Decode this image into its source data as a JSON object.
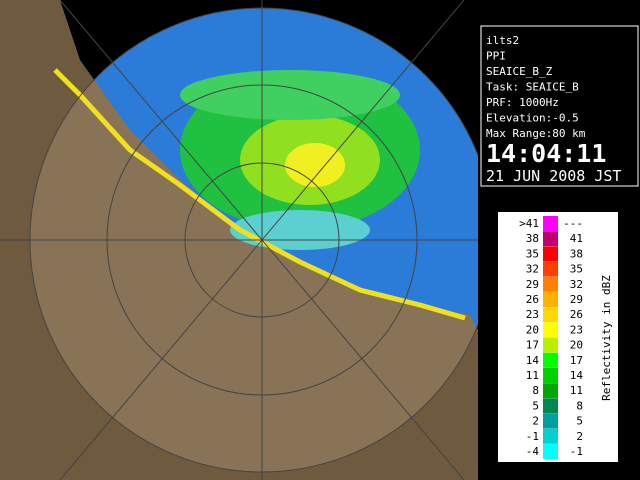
{
  "info": {
    "lines": [
      "ilts2",
      "PPI",
      "SEAICE_B_Z",
      "Task: SEAICE_B",
      "PRF: 1000Hz",
      "Elevation:-0.5",
      "Max Range:80 km"
    ],
    "time": "14:04:11",
    "date": "21 JUN 2008 JST"
  },
  "legend": {
    "title": "Reflectivity in dBZ",
    "rows": [
      {
        "low": ">41",
        "high": "---",
        "color": "#ff00ff"
      },
      {
        "low": "38",
        "high": "41",
        "color": "#c00070"
      },
      {
        "low": "35",
        "high": "38",
        "color": "#ff0000"
      },
      {
        "low": "32",
        "high": "35",
        "color": "#ff4000"
      },
      {
        "low": "29",
        "high": "32",
        "color": "#ff8000"
      },
      {
        "low": "26",
        "high": "29",
        "color": "#ffb000"
      },
      {
        "low": "23",
        "high": "26",
        "color": "#ffd800"
      },
      {
        "low": "20",
        "high": "23",
        "color": "#ffff00"
      },
      {
        "low": "17",
        "high": "20",
        "color": "#b8f000"
      },
      {
        "low": "14",
        "high": "17",
        "color": "#00ff00"
      },
      {
        "low": "11",
        "high": "14",
        "color": "#00d000"
      },
      {
        "low": "8",
        "high": "11",
        "color": "#00a800"
      },
      {
        "low": "5",
        "high": "8",
        "color": "#008850"
      },
      {
        "low": "2",
        "high": "5",
        "color": "#00a0a0"
      },
      {
        "low": "-1",
        "high": "2",
        "color": "#00d0d0"
      },
      {
        "low": "-4",
        "high": "-1",
        "color": "#00ffff"
      }
    ]
  }
}
